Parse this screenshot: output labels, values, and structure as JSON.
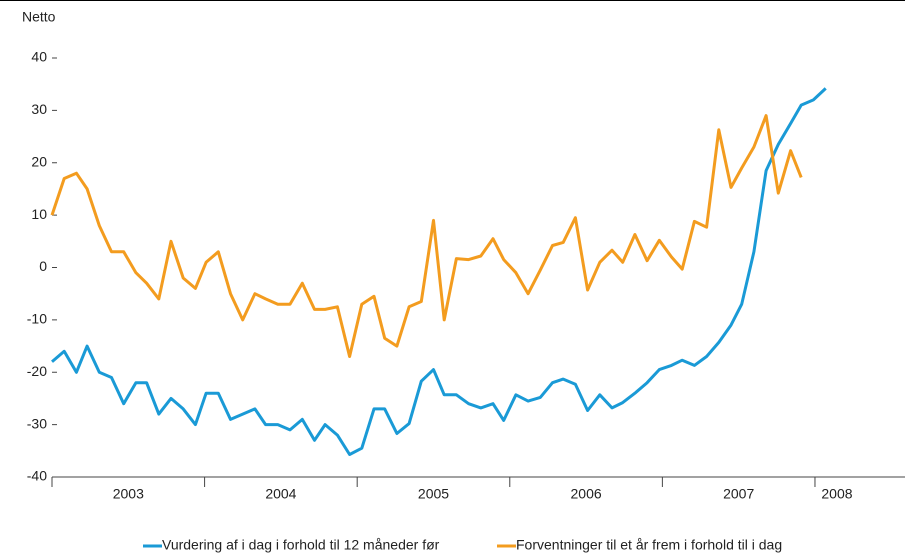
{
  "chart_data": {
    "type": "line",
    "ylabel": "Netto",
    "x": [
      2003.0,
      2003.08,
      2003.16,
      2003.23,
      2003.31,
      2003.39,
      2003.47,
      2003.55,
      2003.62,
      2003.7,
      2003.78,
      2003.86,
      2003.94,
      2004.01,
      2004.09,
      2004.17,
      2004.25,
      2004.33,
      2004.4,
      2004.48,
      2004.56,
      2004.64,
      2004.72,
      2004.79,
      2004.87,
      2004.95,
      2005.03,
      2005.11,
      2005.18,
      2005.26,
      2005.34,
      2005.42,
      2005.5,
      2005.57,
      2005.65,
      2005.73,
      2005.81,
      2005.89,
      2005.96,
      2006.04,
      2006.12,
      2006.2,
      2006.28,
      2006.35,
      2006.43,
      2006.51,
      2006.59,
      2006.67,
      2006.74,
      2006.82,
      2006.9,
      2006.98,
      2007.06,
      2007.13,
      2007.21,
      2007.29,
      2007.37,
      2007.45,
      2007.52,
      2007.6,
      2007.68,
      2007.76,
      2007.84,
      2007.91,
      2007.99,
      2008.07
    ],
    "series": [
      {
        "name": "Vurdering af i dag i forhold til 12 måneder før",
        "color": "#1a9ad6",
        "values": [
          -18,
          -16,
          -20,
          -15,
          -20,
          -21,
          -26,
          -22,
          -22,
          -28,
          -25,
          -27,
          -30,
          -24,
          -24,
          -29,
          -28,
          -27,
          -30,
          -30,
          -31,
          -29,
          -33,
          -30,
          -32,
          -35.7,
          -34.5,
          -27,
          -27,
          -31.7,
          -29.8,
          -21.7,
          -19.5,
          -24.3,
          -24.3,
          -26,
          -26.8,
          -26,
          -29.2,
          -24.3,
          -25.5,
          -24.8,
          -22,
          -21.3,
          -22.3,
          -27.3,
          -24.3,
          -26.8,
          -25.8,
          -24,
          -22,
          -19.5,
          -18.7,
          -17.7,
          -18.7,
          -17,
          -14.3,
          -11,
          -7,
          3,
          18.5,
          23.5,
          27.5,
          31,
          32,
          34.2
        ]
      },
      {
        "name": "Forventninger til et år frem i forhold til i dag",
        "color": "#f39c1f",
        "values": [
          10,
          17,
          18,
          15,
          8,
          3,
          3,
          -1,
          -3,
          -6,
          5,
          -2,
          -4,
          1,
          3,
          -5,
          -10,
          -5,
          -6,
          -7,
          -7,
          -3,
          -8,
          -8,
          -7.5,
          -17,
          -7,
          -5.5,
          -13.5,
          -15,
          -7.5,
          -6.5,
          9,
          -10,
          1.7,
          1.5,
          2.2,
          5.5,
          1.5,
          -1,
          -5,
          -0.5,
          4.2,
          4.8,
          9.5,
          -4.3,
          1,
          3.3,
          1,
          6.3,
          1.3,
          5.2,
          2,
          -0.3,
          8.8,
          7.7,
          26.3,
          15.3,
          19,
          23,
          29,
          14.2,
          22.3,
          17.2,
          null,
          null
        ]
      }
    ],
    "xlim": [
      2003,
      2008.59
    ],
    "xticks": [
      2003,
      2004,
      2005,
      2006,
      2007,
      2008
    ],
    "ylim": [
      -40,
      40
    ],
    "yticks": [
      -40,
      -30,
      -20,
      -10,
      0,
      10,
      20,
      30,
      40
    ],
    "legend": "bottom"
  }
}
